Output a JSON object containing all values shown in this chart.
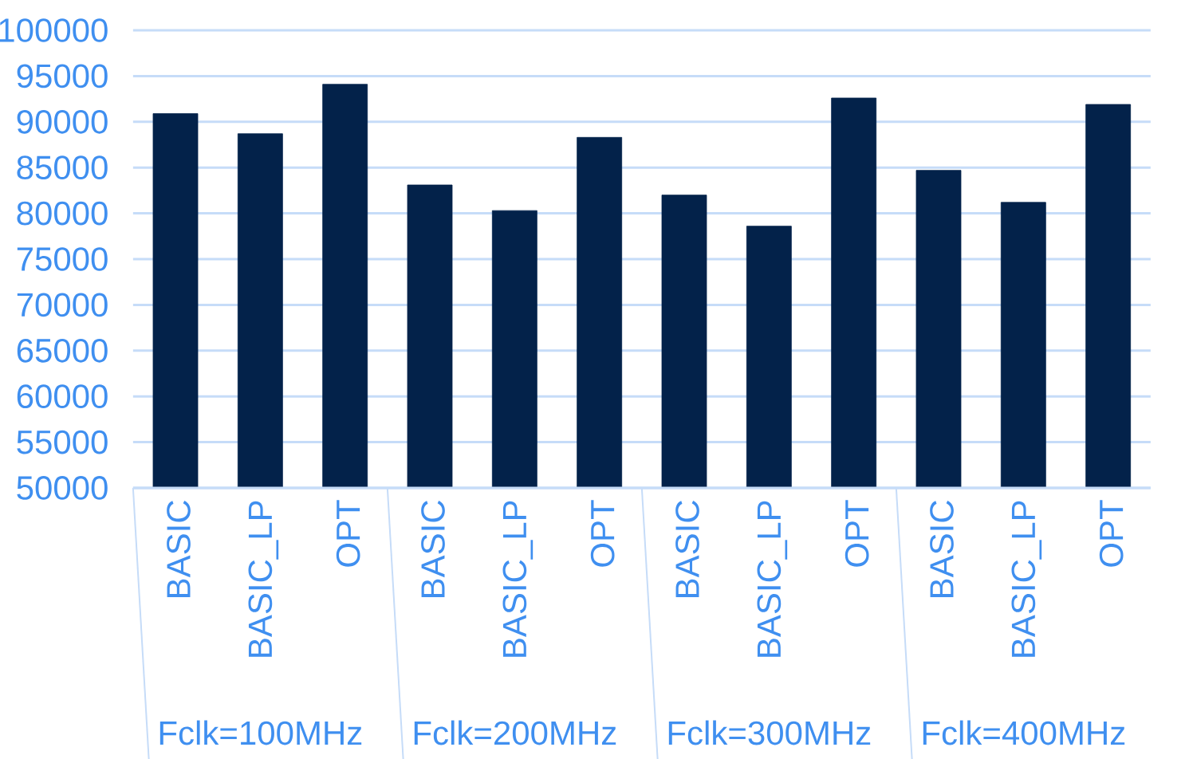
{
  "chart_data": {
    "type": "bar",
    "categories": [
      "BASIC",
      "BASIC_LP",
      "OPT",
      "BASIC",
      "BASIC_LP",
      "OPT",
      "BASIC",
      "BASIC_LP",
      "OPT",
      "BASIC",
      "BASIC_LP",
      "OPT"
    ],
    "values": [
      90900,
      88700,
      94100,
      83100,
      80300,
      88300,
      82000,
      78600,
      92600,
      84700,
      81200,
      91900
    ],
    "color": "#03224a",
    "ylim": [
      50000,
      100000
    ],
    "yticks": [
      50000,
      55000,
      60000,
      65000,
      70000,
      75000,
      80000,
      85000,
      90000,
      95000,
      100000
    ],
    "grid": "y",
    "annotations": [
      "Fclk=100MHz",
      "Fclk=200MHz",
      "Fclk=300MHz",
      "Fclk=400MHz"
    ]
  }
}
